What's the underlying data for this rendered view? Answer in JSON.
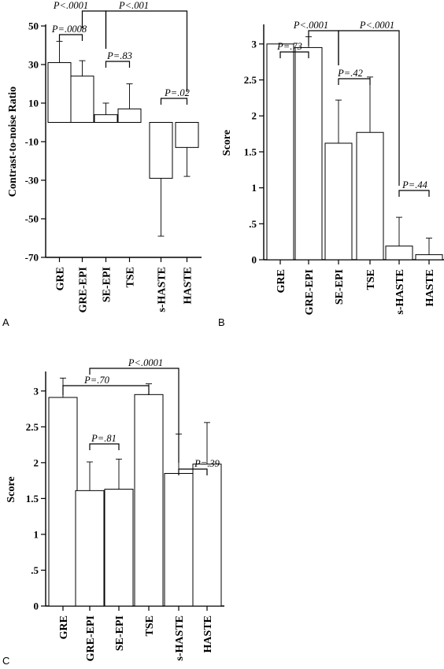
{
  "chart_data": [
    {
      "type": "bar",
      "panel_label": "A",
      "ylabel": "Contrast-to-noise Ratio",
      "xlabel": "",
      "title": "",
      "categories": [
        "GRE",
        "GRE-EPI",
        "SE-EPI",
        "TSE",
        "s-HASTE",
        "HASTE"
      ],
      "values": [
        31,
        24,
        4,
        7,
        -29,
        -13
      ],
      "error_bars": [
        11,
        8,
        6,
        13,
        30,
        15
      ],
      "ylim": [
        -70,
        50
      ],
      "yticks": [
        -70,
        -50,
        -30,
        -10,
        10,
        30,
        50
      ],
      "ytick_labels": [
        "-70",
        "-50",
        "-30",
        "-10",
        "10",
        "30",
        "50"
      ],
      "grid": false,
      "legend": "none",
      "comparisons": [
        {
          "from": "GRE",
          "to": "GRE-EPI",
          "label": "P=.0008"
        },
        {
          "from": "SE-EPI",
          "to": "TSE",
          "label": "P=.83"
        },
        {
          "from": "s-HASTE",
          "to": "HASTE",
          "label": "P=.02"
        },
        {
          "from": "GRE-EPI",
          "to": "SE-EPI",
          "label": "P<.0001"
        },
        {
          "from": "SE-EPI",
          "to": "HASTE",
          "label": "P<.001"
        }
      ]
    },
    {
      "type": "bar",
      "panel_label": "B",
      "ylabel": "Score",
      "xlabel": "",
      "title": "",
      "categories": [
        "GRE",
        "GRE-EPI",
        "SE-EPI",
        "TSE",
        "s-HASTE",
        "HASTE"
      ],
      "values": [
        3.0,
        2.95,
        1.62,
        1.77,
        0.19,
        0.07
      ],
      "error_bars": [
        0,
        0.15,
        0.6,
        0.77,
        0.4,
        0.23
      ],
      "ylim": [
        0,
        3.25
      ],
      "yticks": [
        0,
        0.5,
        1,
        1.5,
        2,
        2.5,
        3
      ],
      "ytick_labels": [
        "0",
        ".5",
        "1",
        "1.5",
        "2",
        "2.5",
        "3"
      ],
      "grid": false,
      "legend": "none",
      "comparisons": [
        {
          "from": "GRE",
          "to": "GRE-EPI",
          "label": "P=.73"
        },
        {
          "from": "SE-EPI",
          "to": "TSE",
          "label": "P=.42"
        },
        {
          "from": "s-HASTE",
          "to": "HASTE",
          "label": "P=.44"
        },
        {
          "from": "GRE-EPI",
          "to": "SE-EPI",
          "label": "P<.0001"
        },
        {
          "from": "SE-EPI",
          "to": "s-HASTE",
          "label": "P<.0001"
        }
      ]
    },
    {
      "type": "bar",
      "panel_label": "C",
      "ylabel": "Score",
      "xlabel": "",
      "title": "",
      "categories": [
        "GRE",
        "GRE-EPI",
        "SE-EPI",
        "TSE",
        "s-HASTE",
        "HASTE"
      ],
      "values": [
        2.91,
        1.61,
        1.63,
        2.95,
        1.85,
        1.98
      ],
      "error_bars": [
        0.27,
        0.4,
        0.42,
        0.15,
        0.55,
        0.58
      ],
      "ylim": [
        0,
        3.25
      ],
      "yticks": [
        0,
        0.5,
        1,
        1.5,
        2,
        2.5,
        3
      ],
      "ytick_labels": [
        "0",
        ".5",
        "1",
        "1.5",
        "2",
        "2.5",
        "3"
      ],
      "grid": false,
      "legend": "none",
      "comparisons": [
        {
          "from": "GRE-EPI",
          "to": "SE-EPI",
          "label": "P=.81"
        },
        {
          "from": "s-HASTE",
          "to": "HASTE",
          "label": "P=.39"
        },
        {
          "from": "GRE",
          "to": "TSE",
          "label": "P=.70"
        },
        {
          "from": "GRE-EPI",
          "to": "s-HASTE",
          "label": "P<.0001"
        }
      ]
    }
  ]
}
